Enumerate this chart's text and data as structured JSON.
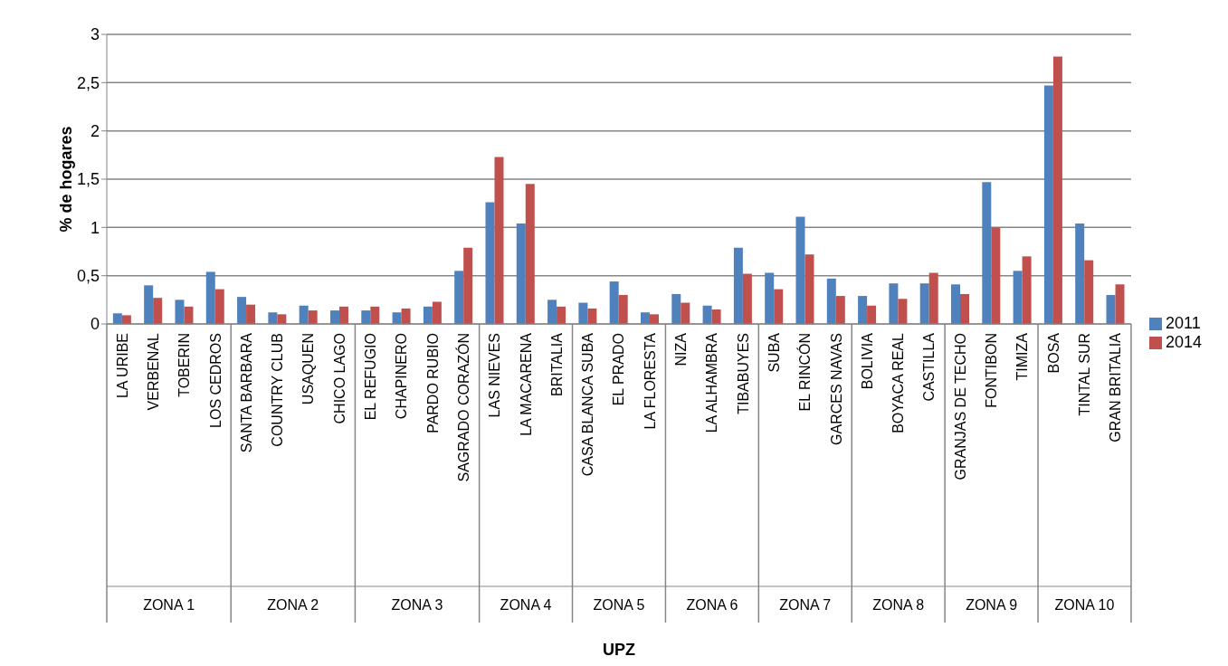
{
  "chart_data": {
    "type": "bar",
    "ylabel": "% de hogares",
    "categories": [
      "LA URIBE",
      "VERBENAL",
      "TOBERIN",
      "LOS CEDROS",
      "SANTA BARBARA",
      "COUNTRY CLUB",
      "USAQUEN",
      "CHICO LAGO",
      "EL REFUGIO",
      "CHAPINERO",
      "PARDO RUBIO",
      "SAGRADO CORAZÓN",
      "LAS NIEVES",
      "LA MACARENA",
      "BRITALIA",
      "CASA BLANCA SUBA",
      "EL PRADO",
      "LA FLORESTA",
      "NIZA",
      "LA ALHAMBRA",
      "TIBABUYES",
      "SUBA",
      "EL RINCÓN",
      "GARCES NAVAS",
      "BOLIVIA",
      "BOYACA REAL",
      "CASTILLA",
      "GRANJAS DE TECHO",
      "FONTIBON",
      "TIMIZA",
      "BOSA",
      "TINTAL SUR",
      "GRAN BRITALIA"
    ],
    "series": [
      {
        "name": "2011",
        "color": "#4f81bd",
        "values": [
          0.11,
          0.4,
          0.25,
          0.54,
          0.28,
          0.12,
          0.19,
          0.14,
          0.14,
          0.12,
          0.18,
          0.55,
          1.26,
          1.04,
          0.25,
          0.22,
          0.44,
          0.12,
          0.31,
          0.19,
          0.79,
          0.53,
          1.11,
          0.47,
          0.29,
          0.42,
          0.42,
          0.41,
          1.47,
          0.55,
          2.47,
          1.04,
          0.3
        ]
      },
      {
        "name": "2014",
        "color": "#c0504d",
        "values": [
          0.09,
          0.27,
          0.18,
          0.36,
          0.2,
          0.1,
          0.14,
          0.18,
          0.18,
          0.16,
          0.23,
          0.79,
          1.73,
          1.45,
          0.18,
          0.16,
          0.3,
          0.1,
          0.22,
          0.15,
          0.52,
          0.36,
          0.72,
          0.29,
          0.19,
          0.26,
          0.53,
          0.31,
          1.0,
          0.7,
          2.77,
          0.66,
          0.41
        ]
      }
    ],
    "ylim": [
      0,
      3
    ],
    "yticks": [
      0,
      {
        "value": 0.5,
        "label": "0,5"
      },
      1,
      {
        "value": 1.5,
        "label": "1,5"
      },
      2,
      {
        "value": 2.5,
        "label": "2,5"
      },
      3
    ],
    "grid": "y",
    "legend": "right",
    "annotations": [
      "ZONA 1",
      "ZONA 2",
      "ZONA 3",
      "ZONA 4",
      "ZONA 5",
      "ZONA 6",
      "ZONA 7",
      "ZONA 8",
      "ZONA 9",
      "ZONA 10",
      "UPZ"
    ]
  }
}
